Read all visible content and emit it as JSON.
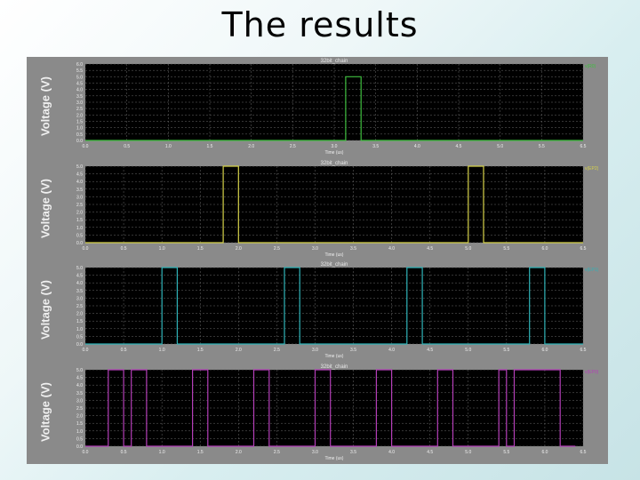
{
  "slide": {
    "title": "The results"
  },
  "chart_data": [
    {
      "type": "line",
      "title": "32bit_chain",
      "xlabel": "Time (us)",
      "ylabel": "Voltage (V)",
      "legend": "v(R0)",
      "color": "#3fbf3f",
      "xlim": [
        0.0,
        6.5
      ],
      "ylim": [
        0.0,
        6.0
      ],
      "xticks": [
        "0.0",
        "0.5",
        "1.0",
        "1.5",
        "2.0",
        "2.5",
        "3.0",
        "3.5",
        "4.0",
        "4.5",
        "5.0",
        "5.5",
        "6.5"
      ],
      "yticks": [
        "0.0",
        "0.5",
        "1.0",
        "1.5",
        "2.0",
        "2.5",
        "3.0",
        "3.5",
        "4.0",
        "4.5",
        "5.0",
        "5.5",
        "6.0"
      ],
      "grid": true,
      "legend_position": "top-right",
      "series": [
        {
          "x": [
            0.0,
            3.4,
            3.4,
            3.6,
            3.6,
            6.5
          ],
          "y": [
            0.0,
            0.0,
            5.0,
            5.0,
            0.0,
            0.0
          ]
        }
      ]
    },
    {
      "type": "line",
      "title": "32bit_chain",
      "xlabel": "Time (us)",
      "ylabel": "Voltage (V)",
      "legend": "v(EP2)",
      "color": "#d7d34a",
      "xlim": [
        0.0,
        6.5
      ],
      "ylim": [
        0.0,
        5.0
      ],
      "xticks": [
        "0.0",
        "0.5",
        "1.0",
        "1.5",
        "2.0",
        "2.5",
        "3.0",
        "3.5",
        "4.0",
        "4.5",
        "5.0",
        "5.5",
        "6.0",
        "6.5"
      ],
      "yticks": [
        "0.0",
        "0.5",
        "1.0",
        "1.5",
        "2.0",
        "2.5",
        "3.0",
        "3.5",
        "4.0",
        "4.5",
        "5.0"
      ],
      "grid": true,
      "legend_position": "top-right",
      "series": [
        {
          "x": [
            0.0,
            1.8,
            1.8,
            2.0,
            2.0,
            5.0,
            5.0,
            5.2,
            5.2,
            6.5
          ],
          "y": [
            0.0,
            0.0,
            5.0,
            5.0,
            0.0,
            0.0,
            5.0,
            5.0,
            0.0,
            0.0
          ]
        }
      ]
    },
    {
      "type": "line",
      "title": "32bit_chain",
      "xlabel": "Time (us)",
      "ylabel": "Voltage (V)",
      "legend": "v(EP1)",
      "color": "#2fb3b8",
      "xlim": [
        0.0,
        6.5
      ],
      "ylim": [
        0.0,
        5.0
      ],
      "xticks": [
        "0.0",
        "0.5",
        "1.0",
        "1.5",
        "2.0",
        "2.5",
        "3.0",
        "3.5",
        "4.0",
        "4.5",
        "5.0",
        "5.5",
        "6.0",
        "6.5"
      ],
      "yticks": [
        "0.0",
        "0.5",
        "1.0",
        "1.5",
        "2.0",
        "2.5",
        "3.0",
        "3.5",
        "4.0",
        "4.5",
        "5.0"
      ],
      "grid": true,
      "legend_position": "top-right",
      "series": [
        {
          "x": [
            0.0,
            1.0,
            1.0,
            1.2,
            1.2,
            2.6,
            2.6,
            2.8,
            2.8,
            4.2,
            4.2,
            4.4,
            4.4,
            5.8,
            5.8,
            6.0,
            6.0,
            6.5
          ],
          "y": [
            0.0,
            0.0,
            5.0,
            5.0,
            0.0,
            0.0,
            5.0,
            5.0,
            0.0,
            0.0,
            5.0,
            5.0,
            0.0,
            0.0,
            5.0,
            5.0,
            0.0,
            0.0
          ]
        }
      ]
    },
    {
      "type": "line",
      "title": "32bit_chain",
      "xlabel": "Time (us)",
      "ylabel": "Voltage (V)",
      "legend": "v(EP0)",
      "color": "#b43fb8",
      "xlim": [
        0.0,
        6.5
      ],
      "ylim": [
        0.0,
        5.0
      ],
      "xticks": [
        "0.0",
        "0.5",
        "1.0",
        "1.5",
        "2.0",
        "2.5",
        "3.0",
        "3.5",
        "4.0",
        "4.5",
        "5.0",
        "5.5",
        "6.0",
        "6.5"
      ],
      "yticks": [
        "0.0",
        "0.5",
        "1.0",
        "1.5",
        "2.0",
        "2.5",
        "3.0",
        "3.5",
        "4.0",
        "4.5",
        "5.0"
      ],
      "grid": true,
      "legend_position": "top-right",
      "series": [
        {
          "x": [
            0.0,
            0.3,
            0.3,
            0.5,
            0.5,
            0.6,
            0.6,
            0.8,
            0.8,
            1.4,
            1.4,
            1.6,
            1.6,
            2.2,
            2.2,
            2.4,
            2.4,
            3.0,
            3.0,
            3.2,
            3.2,
            3.8,
            3.8,
            4.0,
            4.0,
            4.6,
            4.6,
            4.8,
            4.8,
            5.4,
            5.4,
            5.5,
            5.5,
            5.6,
            5.6,
            6.2,
            6.2,
            6.4
          ],
          "y": [
            0.0,
            0.0,
            5.0,
            5.0,
            0.0,
            0.0,
            5.0,
            5.0,
            0.0,
            0.0,
            5.0,
            5.0,
            0.0,
            0.0,
            5.0,
            5.0,
            0.0,
            0.0,
            5.0,
            5.0,
            0.0,
            0.0,
            5.0,
            5.0,
            0.0,
            0.0,
            5.0,
            5.0,
            0.0,
            0.0,
            5.0,
            5.0,
            0.0,
            0.0,
            5.0,
            5.0,
            0.0,
            0.0
          ]
        }
      ]
    }
  ]
}
